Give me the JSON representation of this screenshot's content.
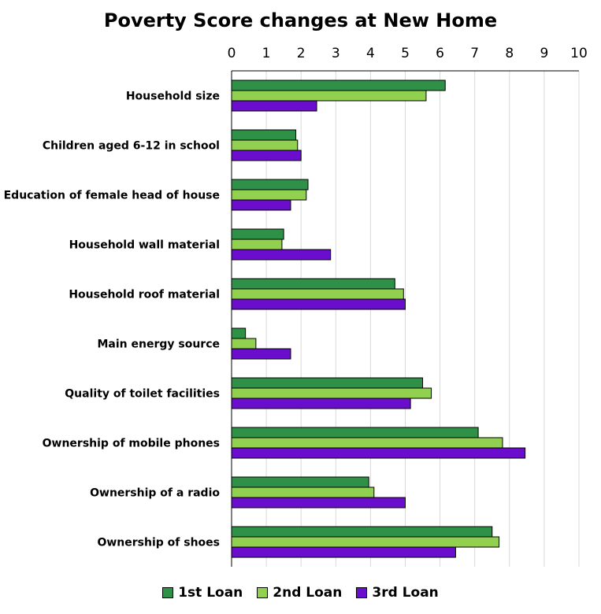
{
  "chart_data": {
    "type": "bar",
    "orientation": "horizontal",
    "title": "Poverty Score changes at New Home",
    "xlabel": "",
    "ylabel": "",
    "xlim": [
      0,
      10
    ],
    "x_ticks": [
      "0",
      "1",
      "2",
      "3",
      "4",
      "5",
      "6",
      "7",
      "8",
      "9",
      "10"
    ],
    "grid": true,
    "legend_position": "bottom",
    "categories": [
      "Household size",
      "Children aged 6-12 in school",
      "Education of female head of house",
      "Household wall material",
      "Household roof material",
      "Main energy source",
      "Quality of toilet facilities",
      "Ownership of mobile phones",
      "Ownership of a radio",
      "Ownership of shoes"
    ],
    "series": [
      {
        "name": "1st Loan",
        "color": "#2e9147",
        "values": [
          6.15,
          1.85,
          2.2,
          1.5,
          4.7,
          0.4,
          5.5,
          7.1,
          3.95,
          7.5
        ]
      },
      {
        "name": "2nd Loan",
        "color": "#92d050",
        "values": [
          5.6,
          1.9,
          2.15,
          1.45,
          4.95,
          0.7,
          5.75,
          7.8,
          4.1,
          7.7
        ]
      },
      {
        "name": "3rd Loan",
        "color": "#6a0dcc",
        "values": [
          2.45,
          2.0,
          1.7,
          2.85,
          5.0,
          1.7,
          5.15,
          8.45,
          5.0,
          6.45
        ]
      }
    ]
  }
}
